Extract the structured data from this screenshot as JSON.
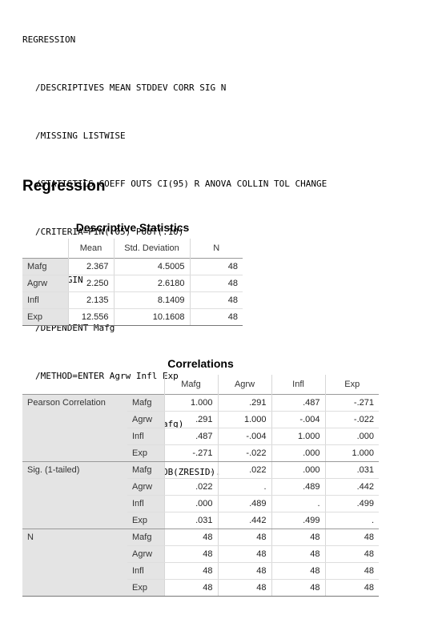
{
  "syntax": {
    "lines": [
      "REGRESSION",
      "/DESCRIPTIVES MEAN STDDEV CORR SIG N",
      "/MISSING LISTWISE",
      "/STATISTICS COEFF OUTS CI(95) R ANOVA COLLIN TOL CHANGE",
      "/CRITERIA=PIN(.05) POUT(.10)",
      "/NOORIGIN",
      "/DEPENDENT Mafg",
      "/METHOD=ENTER Agrw Infl Exp",
      "/SCATTERPLOT=(*ZRESID ,Mafg)",
      "/RESIDUALS DURBIN NORMPROB(ZRESID)."
    ]
  },
  "heading": "Regression",
  "descriptives": {
    "title": "Descriptive Statistics",
    "columns": [
      "Mean",
      "Std. Deviation",
      "N"
    ],
    "rows": [
      {
        "label": "Mafg",
        "values": [
          "2.367",
          "4.5005",
          "48"
        ]
      },
      {
        "label": "Agrw",
        "values": [
          "2.250",
          "2.6180",
          "48"
        ]
      },
      {
        "label": "Infl",
        "values": [
          "2.135",
          "8.1409",
          "48"
        ]
      },
      {
        "label": "Exp",
        "values": [
          "12.556",
          "10.1608",
          "48"
        ]
      }
    ]
  },
  "correlations": {
    "title": "Correlations",
    "columns": [
      "Mafg",
      "Agrw",
      "Infl",
      "Exp"
    ],
    "groups": [
      {
        "label": "Pearson Correlation",
        "rows": [
          {
            "label": "Mafg",
            "values": [
              "1.000",
              ".291",
              ".487",
              "-.271"
            ]
          },
          {
            "label": "Agrw",
            "values": [
              ".291",
              "1.000",
              "-.004",
              "-.022"
            ]
          },
          {
            "label": "Infl",
            "values": [
              ".487",
              "-.004",
              "1.000",
              ".000"
            ]
          },
          {
            "label": "Exp",
            "values": [
              "-.271",
              "-.022",
              ".000",
              "1.000"
            ]
          }
        ]
      },
      {
        "label": "Sig. (1-tailed)",
        "rows": [
          {
            "label": "Mafg",
            "values": [
              ".",
              ".022",
              ".000",
              ".031"
            ]
          },
          {
            "label": "Agrw",
            "values": [
              ".022",
              ".",
              ".489",
              ".442"
            ]
          },
          {
            "label": "Infl",
            "values": [
              ".000",
              ".489",
              ".",
              ".499"
            ]
          },
          {
            "label": "Exp",
            "values": [
              ".031",
              ".442",
              ".499",
              "."
            ]
          }
        ]
      },
      {
        "label": "N",
        "rows": [
          {
            "label": "Mafg",
            "values": [
              "48",
              "48",
              "48",
              "48"
            ]
          },
          {
            "label": "Agrw",
            "values": [
              "48",
              "48",
              "48",
              "48"
            ]
          },
          {
            "label": "Infl",
            "values": [
              "48",
              "48",
              "48",
              "48"
            ]
          },
          {
            "label": "Exp",
            "values": [
              "48",
              "48",
              "48",
              "48"
            ]
          }
        ]
      }
    ]
  }
}
